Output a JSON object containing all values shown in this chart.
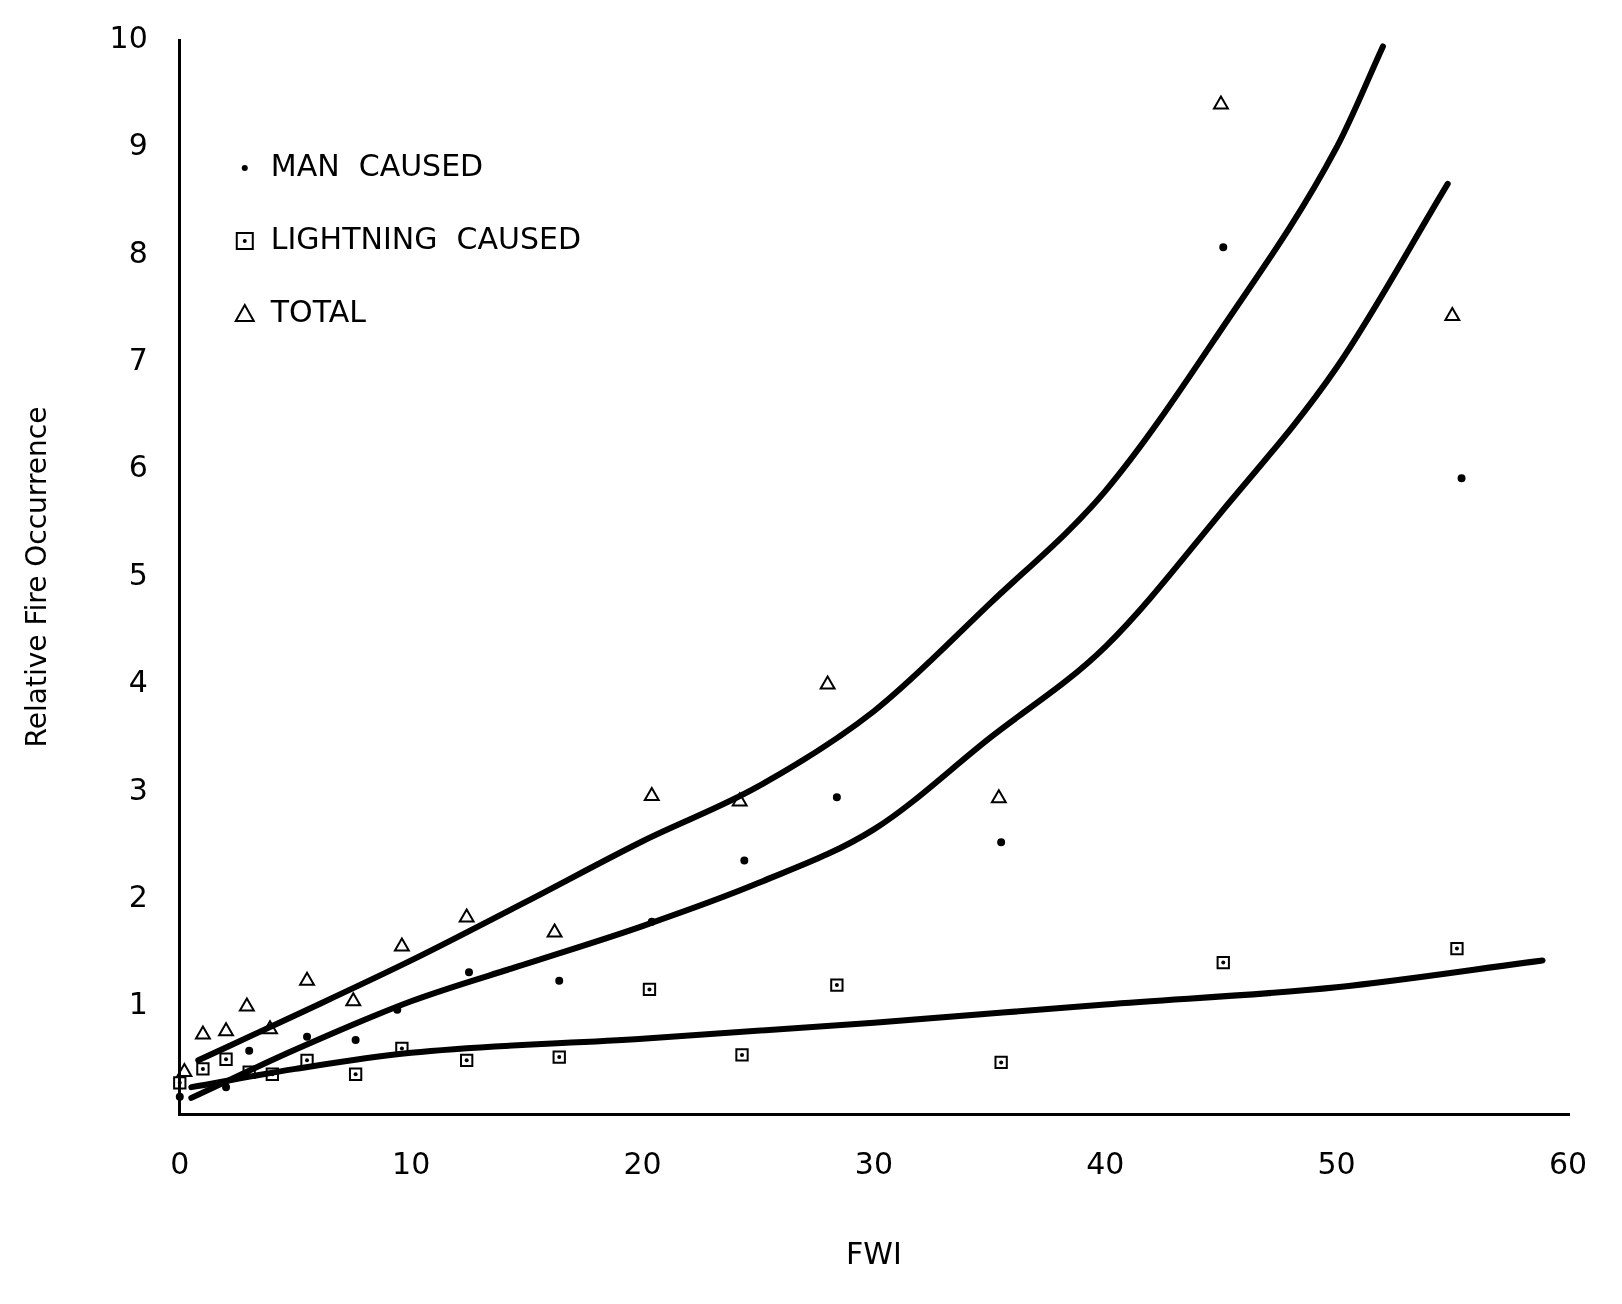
{
  "chart_data": {
    "type": "scatter",
    "xlabel": "FWI",
    "ylabel": "Relative Fire Occurrence",
    "xlim": [
      0,
      60
    ],
    "xticks": [
      0,
      10,
      20,
      30,
      40,
      50,
      60
    ],
    "ylim": [
      0,
      10
    ],
    "yticks": [
      1,
      2,
      3,
      4,
      5,
      6,
      7,
      8,
      9,
      10
    ],
    "grid": false,
    "legend": "top left",
    "series": [
      {
        "name": "MAN CAUSED",
        "color": "#000000",
        "marker": "circle",
        "x": [
          0,
          2,
          3,
          5.5,
          7.6,
          9.4,
          12.5,
          16.4,
          20.4,
          24.4,
          28.4,
          35.5,
          45.1,
          55.4
        ],
        "values": [
          0.16,
          0.25,
          0.59,
          0.72,
          0.69,
          0.97,
          1.32,
          1.24,
          1.79,
          2.36,
          2.95,
          2.53,
          8.07,
          5.92
        ]
      },
      {
        "name": "LIGHTNING CAUSED",
        "color": "#000000",
        "marker": "square",
        "x": [
          0,
          1,
          2,
          3,
          4,
          5.5,
          7.6,
          9.6,
          12.4,
          16.4,
          20.3,
          24.3,
          28.4,
          35.5,
          45.1,
          55.2
        ],
        "values": [
          0.29,
          0.42,
          0.51,
          0.39,
          0.37,
          0.5,
          0.37,
          0.61,
          0.5,
          0.53,
          1.16,
          0.55,
          1.2,
          0.48,
          1.41,
          1.54
        ]
      },
      {
        "name": "TOTAL",
        "color": "#000000",
        "marker": "triangle",
        "x": [
          0.2,
          1,
          2,
          2.9,
          3.9,
          5.5,
          7.5,
          9.6,
          12.4,
          16.2,
          20.4,
          24.2,
          28,
          35.4,
          45,
          55
        ],
        "values": [
          0.39,
          0.74,
          0.77,
          1,
          0.79,
          1.24,
          1.05,
          1.56,
          1.83,
          1.69,
          2.96,
          2.91,
          4,
          2.94,
          9.4,
          7.43
        ]
      },
      {
        "type": "line",
        "color": "#000000",
        "marker": "none",
        "line_style": "solid",
        "x": [
          0.8,
          5,
          10,
          15,
          20,
          25,
          30,
          35,
          40,
          45,
          50,
          52
        ],
        "values": [
          0.5,
          0.92,
          1.43,
          1.98,
          2.54,
          3.05,
          3.75,
          4.75,
          5.8,
          7.3,
          9,
          9.94
        ]
      },
      {
        "type": "line",
        "color": "#000000",
        "marker": "none",
        "line_style": "solid",
        "x": [
          0.5,
          5,
          10,
          15,
          20,
          25,
          30,
          35,
          40,
          45,
          50,
          54.8
        ],
        "values": [
          0.15,
          0.6,
          1.05,
          1.4,
          1.75,
          2.15,
          2.65,
          3.5,
          4.35,
          5.6,
          6.95,
          8.66
        ]
      },
      {
        "type": "line",
        "color": "#000000",
        "marker": "none",
        "line_style": "solid",
        "x": [
          0.5,
          5,
          10,
          20,
          30,
          40,
          50,
          58.9
        ],
        "values": [
          0.25,
          0.42,
          0.57,
          0.7,
          0.85,
          1.02,
          1.18,
          1.43
        ]
      }
    ]
  }
}
